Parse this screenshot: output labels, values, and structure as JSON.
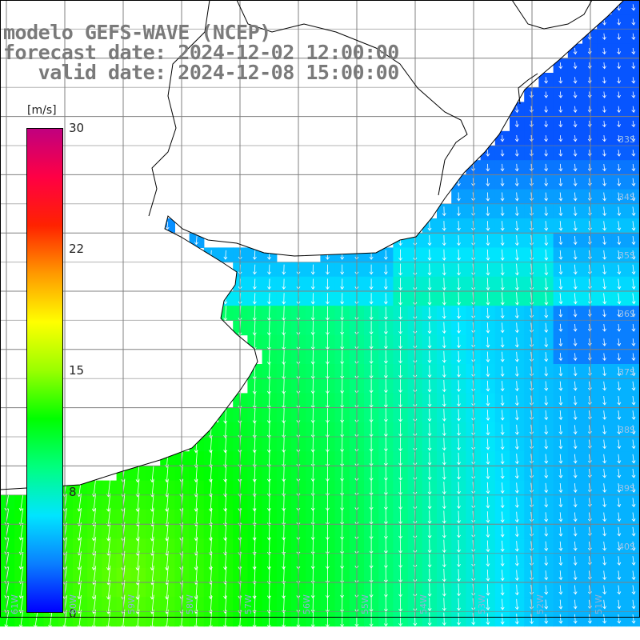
{
  "title": {
    "line1": "modelo GEFS-WAVE (NCEP)",
    "line2": "forecast date: 2024-12-02 12:00:00",
    "line3": "   valid date: 2024-12-08 15:00:00"
  },
  "colorbar": {
    "units": "[m/s]",
    "ticks": [
      "30",
      "22",
      "15",
      "8",
      "0"
    ],
    "tick_values": [
      30,
      22,
      15,
      8,
      0
    ],
    "range": [
      0,
      30
    ],
    "colors": [
      "#0000ff",
      "#0a7fff",
      "#00e5ff",
      "#00ff7f",
      "#00ff00",
      "#9aff00",
      "#ffff00",
      "#ff9900",
      "#ff2200",
      "#ff0044",
      "#c0007f"
    ]
  },
  "map": {
    "variable": "wind speed and direction",
    "land_color": "#ffffff",
    "coast_color": "#000000",
    "grid_color": "#7f7f7f",
    "lat_labels": [
      "33S",
      "34S",
      "35S",
      "36S",
      "37S",
      "38S",
      "39S",
      "40S"
    ],
    "lon_labels": [
      "61W",
      "60W",
      "59W",
      "58W",
      "57W",
      "56W",
      "55W",
      "54W",
      "53W",
      "52W",
      "51W"
    ]
  }
}
